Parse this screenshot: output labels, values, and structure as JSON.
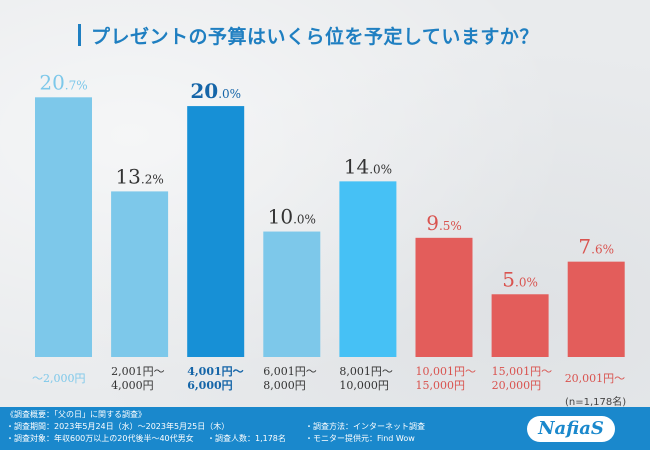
{
  "title": "プレゼントの予算はいくら位を予定していますか？",
  "chart_data": {
    "type": "bar",
    "title": "プレゼントの予算はいくら位を予定していますか？",
    "categories": [
      [
        "～2,000円"
      ],
      [
        "2,001円～",
        "4,000円"
      ],
      [
        "4,001円～",
        "6,000円"
      ],
      [
        "6,001円～",
        "8,000円"
      ],
      [
        "8,001円～",
        "10,000円"
      ],
      [
        "10,001円～",
        "15,000円"
      ],
      [
        "15,001円～",
        "20,000円"
      ],
      [
        "20,001円～"
      ]
    ],
    "values": [
      20.7,
      13.2,
      20.0,
      10.0,
      14.0,
      9.5,
      5.0,
      7.6
    ],
    "value_labels": [
      {
        "num": "20",
        "dec": ".7%"
      },
      {
        "num": "13",
        "dec": ".2%"
      },
      {
        "num": "20",
        "dec": ".0%"
      },
      {
        "num": "10",
        "dec": ".0%"
      },
      {
        "num": "14",
        "dec": ".0%"
      },
      {
        "num": "9",
        "dec": ".5%"
      },
      {
        "num": "5",
        "dec": ".0%"
      },
      {
        "num": "7",
        "dec": ".6%"
      }
    ],
    "bar_colors": [
      "#7dc8ea",
      "#7dc8ea",
      "#1790d6",
      "#7dc8ea",
      "#46c1f5",
      "#e35d5b",
      "#e35d5b",
      "#e35d5b"
    ],
    "label_colors": [
      "#7dc8ea",
      "#333333",
      "#1565a8",
      "#333333",
      "#333333",
      "#d9534f",
      "#d9534f",
      "#d9534f"
    ],
    "value_colors": [
      "#7dc8ea",
      "#333333",
      "#1565a8",
      "#333333",
      "#333333",
      "#d9534f",
      "#d9534f",
      "#d9534f"
    ],
    "ylim": [
      0,
      22
    ],
    "grid": false,
    "legend": "none"
  },
  "sample_size": "(n=1,178名)",
  "footer": {
    "survey_outline": "《調査概要：「父の日」に関する調査》",
    "survey_period": "・調査期間：2023年5月24日（水）～2023年5月25日（木）",
    "survey_target": "・調査対象：年収600万以上の20代後半～40代男女",
    "survey_count": "・調査人数：1,178名",
    "survey_method": "・調査方法：インターネット調査",
    "monitor": "・モニター提供元：Find Wow",
    "logo_text": "NafiaS"
  }
}
